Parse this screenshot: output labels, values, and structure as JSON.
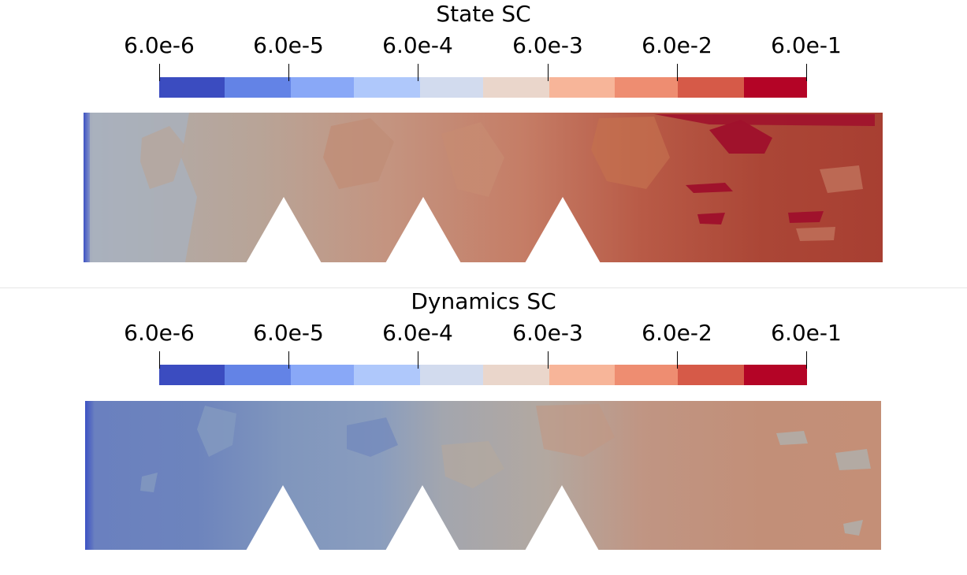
{
  "colorbar": {
    "tick_labels": [
      "6.0e-6",
      "6.0e-5",
      "6.0e-4",
      "6.0e-3",
      "6.0e-2",
      "6.0e-1"
    ],
    "colors": [
      "#3b4cc0",
      "#6383e6",
      "#89a8f7",
      "#afc8fb",
      "#d2dbee",
      "#ead6cb",
      "#f7b599",
      "#ee8d71",
      "#d65a48",
      "#b40426"
    ]
  },
  "panels": [
    {
      "title": "State SC"
    },
    {
      "title": "Dynamics SC"
    }
  ]
}
